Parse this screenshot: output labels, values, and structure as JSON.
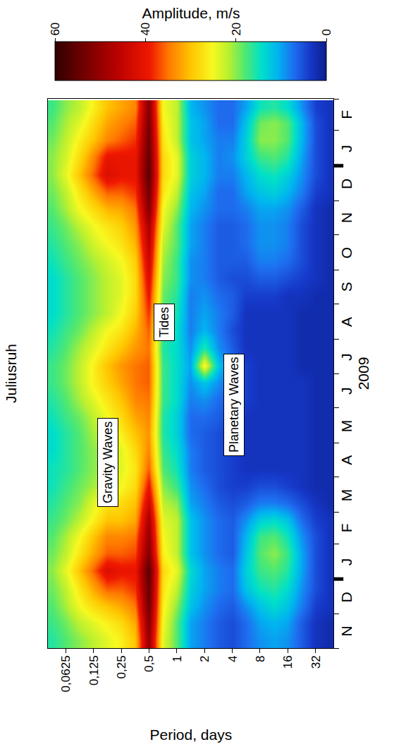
{
  "chart_data": {
    "type": "heatmap",
    "title": "Juliusruh",
    "x_label": "2009",
    "y_label": "Period, days",
    "log": "y",
    "grid": false,
    "xlim": [
      "2008-11-01",
      "2010-03-01"
    ],
    "xticks": [
      {
        "value": "2008-11-16",
        "label": "N"
      },
      {
        "value": "2008-12-16",
        "label": "D"
      },
      {
        "value": "2009-01-16",
        "label": "J"
      },
      {
        "value": "2009-02-15",
        "label": "F"
      },
      {
        "value": "2009-03-16",
        "label": "M"
      },
      {
        "value": "2009-04-16",
        "label": "A"
      },
      {
        "value": "2009-05-16",
        "label": "M"
      },
      {
        "value": "2009-06-16",
        "label": "J"
      },
      {
        "value": "2009-07-16",
        "label": "J"
      },
      {
        "value": "2009-08-16",
        "label": "A"
      },
      {
        "value": "2009-09-16",
        "label": "S"
      },
      {
        "value": "2009-10-16",
        "label": "O"
      },
      {
        "value": "2009-11-16",
        "label": "N"
      },
      {
        "value": "2009-12-16",
        "label": "D"
      },
      {
        "value": "2010-01-16",
        "label": "J"
      },
      {
        "value": "2010-02-15",
        "label": "F"
      }
    ],
    "ylim": [
      0.04,
      50
    ],
    "yticks": [
      {
        "value": 0.0625,
        "label": "0,0625"
      },
      {
        "value": 0.125,
        "label": "0,125"
      },
      {
        "value": 0.25,
        "label": "0,25"
      },
      {
        "value": 0.5,
        "label": "0,5"
      },
      1,
      2,
      4,
      8,
      16,
      32
    ],
    "colorbar": {
      "title": "Amplitude, m/s",
      "range": [
        0,
        60
      ],
      "ticks": [
        0,
        20,
        40,
        60
      ]
    },
    "annotations": [
      {
        "text": "Gravity Waves",
        "x": "2009-04-14",
        "y": 0.18
      },
      {
        "text": "Tides",
        "x": "2009-08-16",
        "y": 0.73
      },
      {
        "text": "Planetary Waves",
        "x": "2009-06-04",
        "y": 4.2
      }
    ],
    "cells": {
      "x": [
        "2008-11-08",
        "2008-11-23",
        "2008-12-08",
        "2008-12-23",
        "2009-01-08",
        "2009-01-23",
        "2009-02-07",
        "2009-02-21",
        "2009-03-08",
        "2009-03-23",
        "2009-04-08",
        "2009-04-23",
        "2009-05-08",
        "2009-05-23",
        "2009-06-08",
        "2009-06-23",
        "2009-07-08",
        "2009-07-23",
        "2009-08-08",
        "2009-08-23",
        "2009-09-08",
        "2009-09-23",
        "2009-10-08",
        "2009-10-23",
        "2009-11-08",
        "2009-11-23",
        "2009-12-08",
        "2009-12-23",
        "2010-01-08",
        "2010-01-23",
        "2010-02-07",
        "2010-02-21"
      ],
      "y": [
        0.0442,
        0.0625,
        0.0884,
        0.125,
        0.177,
        0.25,
        0.354,
        0.5,
        0.707,
        1,
        1.41,
        2,
        2.83,
        4,
        5.66,
        8,
        11.3,
        16,
        22.6,
        32,
        45
      ],
      "z": [
        [
          16,
          17,
          18,
          19,
          20,
          19,
          18,
          17,
          16,
          15,
          15,
          14,
          14,
          15,
          16,
          17,
          17,
          16,
          15,
          14,
          14,
          14,
          15,
          16,
          17,
          18,
          19,
          20,
          20,
          19,
          18,
          17
        ],
        [
          18,
          19,
          21,
          22,
          24,
          22,
          21,
          19,
          18,
          17,
          16,
          16,
          16,
          17,
          18,
          19,
          19,
          18,
          17,
          16,
          16,
          16,
          17,
          18,
          19,
          21,
          22,
          24,
          23,
          22,
          21,
          20
        ],
        [
          20,
          22,
          25,
          27,
          30,
          27,
          25,
          22,
          20,
          19,
          18,
          18,
          18,
          19,
          21,
          22,
          22,
          21,
          19,
          18,
          18,
          18,
          19,
          20,
          22,
          25,
          27,
          30,
          28,
          26,
          24,
          22
        ],
        [
          22,
          24,
          28,
          32,
          36,
          32,
          30,
          26,
          24,
          21,
          20,
          20,
          21,
          22,
          24,
          26,
          26,
          24,
          22,
          20,
          20,
          20,
          21,
          23,
          25,
          28,
          32,
          36,
          34,
          30,
          28,
          26
        ],
        [
          24,
          26,
          30,
          36,
          42,
          36,
          34,
          30,
          27,
          23,
          22,
          22,
          23,
          25,
          27,
          29,
          30,
          27,
          25,
          22,
          22,
          22,
          23,
          25,
          27,
          31,
          36,
          42,
          40,
          34,
          32,
          30
        ],
        [
          26,
          28,
          32,
          36,
          40,
          36,
          34,
          30,
          28,
          25,
          24,
          24,
          26,
          28,
          30,
          32,
          33,
          30,
          27,
          25,
          24,
          24,
          25,
          27,
          29,
          32,
          36,
          40,
          40,
          36,
          34,
          32
        ],
        [
          30,
          32,
          35,
          38,
          40,
          37,
          35,
          32,
          30,
          28,
          27,
          28,
          30,
          32,
          34,
          35,
          35,
          33,
          31,
          29,
          28,
          28,
          29,
          31,
          33,
          35,
          38,
          40,
          40,
          38,
          36,
          34
        ],
        [
          50,
          52,
          54,
          55,
          56,
          52,
          50,
          48,
          44,
          40,
          36,
          34,
          33,
          34,
          35,
          36,
          36,
          35,
          36,
          38,
          40,
          42,
          44,
          46,
          48,
          52,
          54,
          56,
          55,
          54,
          53,
          52
        ],
        [
          24,
          25,
          26,
          27,
          28,
          26,
          25,
          24,
          22,
          20,
          18,
          17,
          16,
          16,
          17,
          17,
          17,
          16,
          17,
          18,
          19,
          20,
          21,
          22,
          24,
          25,
          27,
          28,
          28,
          27,
          26,
          25
        ],
        [
          18,
          18,
          20,
          22,
          24,
          22,
          22,
          22,
          20,
          17,
          15,
          14,
          13,
          13,
          14,
          14,
          14,
          14,
          14,
          15,
          16,
          17,
          17,
          18,
          18,
          20,
          22,
          24,
          24,
          22,
          22,
          22
        ],
        [
          10,
          10,
          12,
          13,
          14,
          12,
          12,
          12,
          10,
          9,
          8,
          8,
          7,
          7,
          8,
          9,
          10,
          9,
          8,
          8,
          8,
          9,
          9,
          10,
          10,
          11,
          12,
          13,
          13,
          12,
          12,
          11
        ],
        [
          8,
          8,
          9,
          10,
          10,
          9,
          9,
          9,
          8,
          7,
          6,
          6,
          6,
          7,
          9,
          12,
          26,
          16,
          11,
          10,
          9,
          8,
          8,
          8,
          8,
          9,
          10,
          11,
          11,
          10,
          10,
          9
        ],
        [
          6,
          6,
          7,
          8,
          8,
          7,
          7,
          7,
          6,
          5,
          5,
          5,
          5,
          6,
          7,
          9,
          12,
          9,
          8,
          8,
          7,
          6,
          6,
          6,
          6,
          7,
          7,
          8,
          8,
          8,
          7,
          7
        ],
        [
          5,
          5,
          6,
          7,
          7,
          6,
          6,
          6,
          5,
          4,
          4,
          4,
          4,
          5,
          6,
          6,
          7,
          6,
          5,
          6,
          6,
          5,
          6,
          6,
          6,
          7,
          7,
          8,
          9,
          8,
          7,
          7
        ],
        [
          7,
          7,
          9,
          12,
          13,
          12,
          11,
          9,
          6,
          4,
          3,
          3,
          3,
          3,
          4,
          4,
          4,
          3,
          3,
          3,
          4,
          5,
          6,
          7,
          7,
          8,
          10,
          11,
          13,
          13,
          12,
          10
        ],
        [
          9,
          10,
          12,
          15,
          17,
          18,
          17,
          13,
          8,
          5,
          3,
          3,
          3,
          3,
          3,
          3,
          3,
          3,
          3,
          3,
          4,
          6,
          8,
          9,
          9,
          10,
          12,
          14,
          17,
          20,
          19,
          15
        ],
        [
          10,
          11,
          14,
          16,
          18,
          20,
          18,
          14,
          8,
          5,
          3,
          3,
          3,
          3,
          3,
          3,
          3,
          3,
          3,
          3,
          4,
          6,
          8,
          9,
          9,
          10,
          13,
          15,
          18,
          20,
          20,
          16
        ],
        [
          9,
          10,
          12,
          14,
          16,
          17,
          15,
          12,
          7,
          4,
          3,
          3,
          3,
          3,
          3,
          3,
          3,
          3,
          3,
          3,
          3,
          5,
          7,
          8,
          8,
          9,
          11,
          13,
          16,
          18,
          18,
          14
        ],
        [
          6,
          6,
          8,
          9,
          10,
          10,
          9,
          7,
          5,
          3,
          3,
          3,
          3,
          3,
          3,
          3,
          2,
          2,
          2,
          2,
          3,
          4,
          5,
          5,
          5,
          6,
          8,
          9,
          10,
          11,
          11,
          9
        ],
        [
          3,
          3,
          4,
          5,
          5,
          5,
          5,
          4,
          3,
          2,
          2,
          2,
          2,
          2,
          2,
          2,
          2,
          2,
          2,
          2,
          2,
          3,
          3,
          3,
          3,
          3,
          4,
          5,
          5,
          5,
          5,
          4
        ],
        [
          2,
          2,
          3,
          3,
          3,
          3,
          3,
          3,
          2,
          2,
          2,
          2,
          2,
          2,
          2,
          2,
          2,
          2,
          2,
          2,
          2,
          2,
          2,
          2,
          2,
          2,
          3,
          3,
          3,
          3,
          3,
          3
        ]
      ]
    }
  }
}
